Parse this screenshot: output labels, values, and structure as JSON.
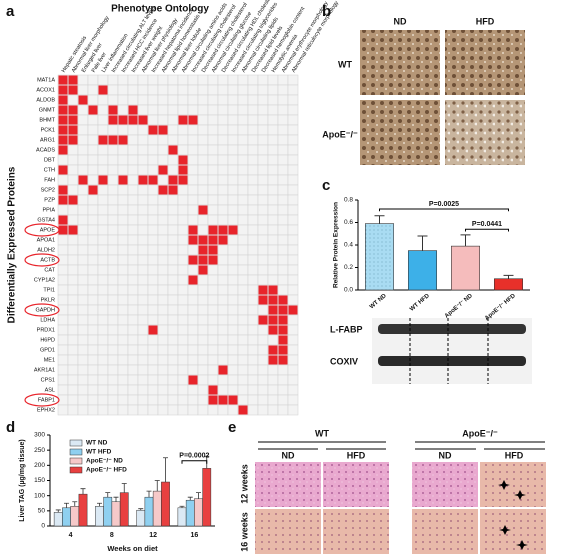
{
  "chart_data": [
    {
      "type": "matrix",
      "title": "Phenotype Ontology",
      "y_label": "Differentially Expressed Proteins",
      "color": "#e8242b",
      "columns": [
        "Hepatic steatosis",
        "Abnormal liver morphology",
        "Enlarged liver",
        "Pale liver",
        "Liver inflammation",
        "Increased circulating ALT levels",
        "Increased HCC incidence",
        "Increased liver weight",
        "Abnormal liver physiology",
        "Increased hepatoma incidence",
        "Abnormal lipid homeostasis",
        "Abnormal liver lobule",
        "Abnormal circulating amino acids",
        "Increased circulating cholesterol",
        "Decreased circulating cholesterol",
        "Abnormal circulating glucose",
        "Decreased circulating HDL cholesterol",
        "Increased circulating triglycerides",
        "Abnormal circulating lipids",
        "Decreased lipid levels",
        "Decreased hemoglobin content",
        "Hemolytic anemia",
        "Abnormal erythrocyte morphology",
        "Abnormal reticulocyte morphology"
      ],
      "rows": [
        "MAT1A",
        "ACOX1",
        "ALDOB",
        "GNMT",
        "BHMT",
        "PCK1",
        "ARG1",
        "ACADS",
        "DBT",
        "CTH",
        "FAH",
        "SCP2",
        "PZP",
        "PPIA",
        "GSTA4",
        "APOE",
        "APOA1",
        "ALDH2",
        "ACTB",
        "CAT",
        "CYP1A2",
        "TPI1",
        "PKLR",
        "GAPDH",
        "LDHA",
        "PRDX1",
        "H6PD",
        "GPD1",
        "ME1",
        "AKR1A1",
        "CPS1",
        "ASL",
        "FABP1",
        "EPHX2"
      ],
      "filled": [
        [
          0,
          1
        ],
        [
          0,
          1,
          4
        ],
        [
          0,
          2
        ],
        [
          0,
          1,
          3,
          5,
          7
        ],
        [
          0,
          1,
          5,
          6,
          7,
          8,
          12,
          13
        ],
        [
          0,
          1,
          9,
          10
        ],
        [
          0,
          1,
          4,
          5,
          6
        ],
        [
          0,
          11
        ],
        [
          12
        ],
        [
          0,
          10,
          12
        ],
        [
          2,
          4,
          6,
          8,
          9,
          11,
          12
        ],
        [
          0,
          3,
          10,
          11
        ],
        [
          0,
          1
        ],
        [
          14
        ],
        [
          0
        ],
        [
          0,
          1,
          13,
          15,
          16,
          17
        ],
        [
          13,
          14,
          15,
          16
        ],
        [
          14,
          15
        ],
        [
          13,
          14,
          15
        ],
        [
          14
        ],
        [
          13
        ],
        [
          20,
          21
        ],
        [
          20,
          21,
          22
        ],
        [
          21,
          22,
          23
        ],
        [
          20,
          21,
          22
        ],
        [
          9,
          21,
          22
        ],
        [
          22
        ],
        [
          21,
          22
        ],
        [
          21,
          22
        ],
        [
          16
        ],
        [
          13
        ],
        [
          15
        ],
        [
          15,
          16,
          17
        ],
        [
          18
        ]
      ]
    },
    {
      "type": "bar",
      "y_label": "Relative Protein Expression",
      "categories": [
        "WT ND",
        "WT HFD",
        "ApoE⁻/⁻ ND",
        "ApoE⁻/⁻ HFD"
      ],
      "values": [
        0.59,
        0.35,
        0.39,
        0.1
      ],
      "errors": [
        0.07,
        0.13,
        0.1,
        0.03
      ],
      "colors": [
        "#a9dcf2",
        "#3db0e8",
        "#f5bcbc",
        "#e8302a"
      ],
      "ylim": [
        0,
        0.8
      ],
      "yticks": [
        {
          "value": 0,
          "label": "0.0"
        },
        0.2,
        0.4,
        0.6,
        0.8
      ],
      "annotations": [
        "P=0.0025",
        "P=0.0441"
      ],
      "blot_labels": [
        "L-FABP",
        "COXIV"
      ]
    },
    {
      "type": "grouped_bar",
      "y_label": "Liver TAG (µg/mg tissue)",
      "x_label": "Weeks on diet",
      "categories": [
        "4",
        "8",
        "12",
        "16"
      ],
      "series": [
        {
          "name": "WT ND",
          "color": "#dbe9f4",
          "values": [
            45,
            65,
            52,
            60
          ],
          "errors": [
            8,
            10,
            5,
            5
          ]
        },
        {
          "name": "WT HFD",
          "color": "#8fd0f0",
          "values": [
            60,
            95,
            95,
            85
          ],
          "errors": [
            15,
            15,
            20,
            10
          ]
        },
        {
          "name": "ApoE⁻/⁻ ND",
          "color": "#f6c9c9",
          "values": [
            65,
            80,
            115,
            90
          ],
          "errors": [
            15,
            15,
            35,
            20
          ]
        },
        {
          "name": "ApoE⁻/⁻ HFD",
          "color": "#e84040",
          "values": [
            105,
            110,
            145,
            190
          ],
          "errors": [
            18,
            30,
            80,
            40
          ]
        }
      ],
      "ylim": [
        0,
        300
      ],
      "yticks": [
        0,
        50,
        100,
        150,
        200,
        250,
        300
      ],
      "annotations": [
        "P=0.0002"
      ]
    }
  ],
  "figure": {
    "panel_labels": [
      "a",
      "b",
      "c",
      "d",
      "e"
    ],
    "b": {
      "columns": [
        "ND",
        "HFD"
      ],
      "rows": [
        "WT",
        "ApoE⁻/⁻"
      ]
    },
    "e": {
      "groups": [
        "WT",
        "ApoE⁻/⁻"
      ],
      "columns": [
        "ND",
        "HFD",
        "ND",
        "HFD"
      ],
      "rows": [
        "12 weeks",
        "16 weeks"
      ]
    }
  }
}
